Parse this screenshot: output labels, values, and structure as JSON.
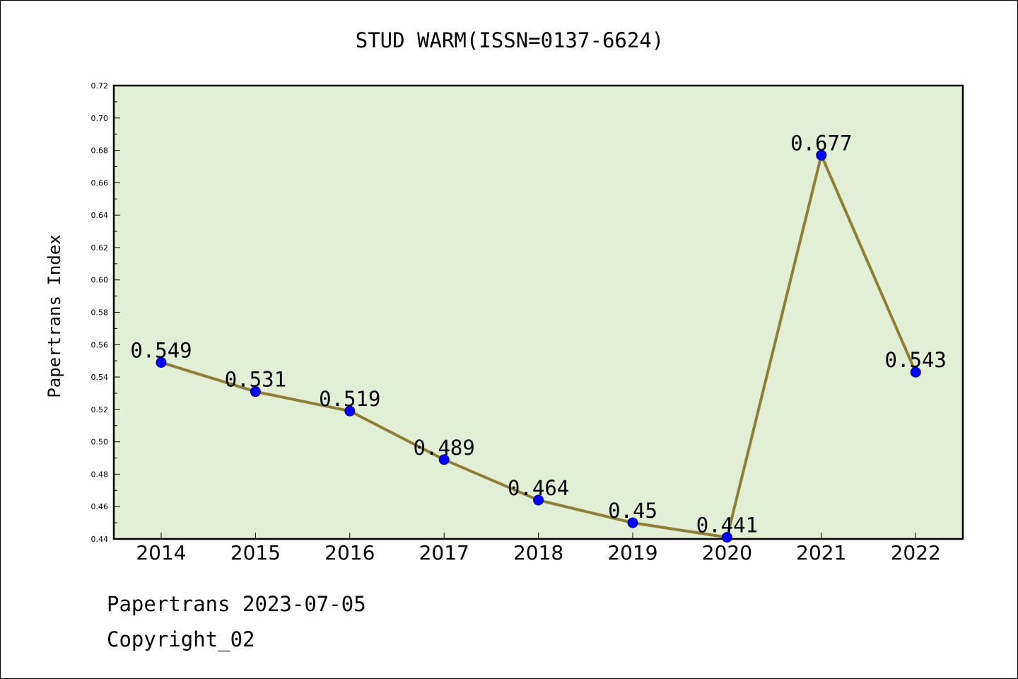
{
  "chart_data": {
    "type": "line",
    "title": "STUD WARM(ISSN=0137-6624)",
    "xlabel": "",
    "ylabel": "Papertrans Index",
    "categories": [
      "2014",
      "2015",
      "2016",
      "2017",
      "2018",
      "2019",
      "2020",
      "2021",
      "2022"
    ],
    "values": [
      0.549,
      0.531,
      0.519,
      0.489,
      0.464,
      0.45,
      0.441,
      0.677,
      0.543
    ],
    "data_labels": [
      "0.549",
      "0.531",
      "0.519",
      "0.489",
      "0.464",
      "0.45",
      "0.441",
      "0.677",
      "0.543"
    ],
    "ylim": [
      0.44,
      0.72
    ],
    "yticks": [
      "0.44",
      "0.46",
      "0.48",
      "0.50",
      "0.52",
      "0.54",
      "0.56",
      "0.58",
      "0.60",
      "0.62",
      "0.64",
      "0.66",
      "0.68",
      "0.70",
      "0.72"
    ],
    "grid": false,
    "legend": "none",
    "colors": {
      "plot_background": "#e2efd5",
      "line": "#8c7f3a",
      "marker": "#0000ff"
    }
  },
  "footer": {
    "date_line": "Papertrans 2023-07-05",
    "copyright": "Copyright_02"
  }
}
